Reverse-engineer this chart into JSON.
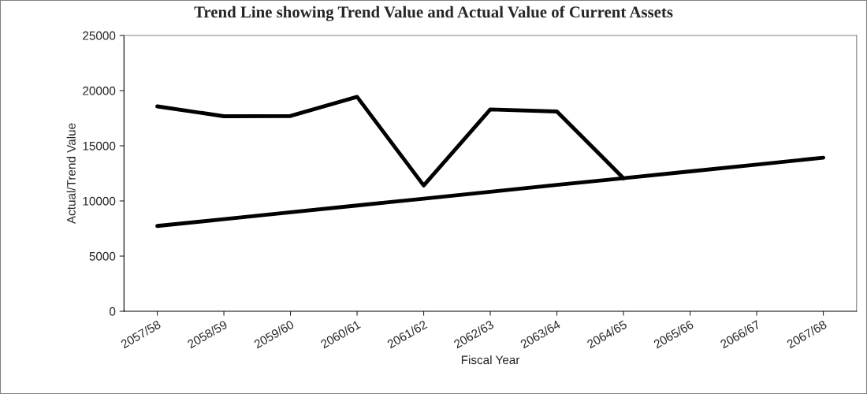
{
  "chart_data": {
    "type": "line",
    "title": "Trend Line showing Trend Value and Actual Value of Current Assets",
    "xlabel": "Fiscal Year",
    "ylabel": "Actual/Trend Value",
    "categories": [
      "2057/58",
      "2058/59",
      "2059/60",
      "2060/61",
      "2061/62",
      "2062/63",
      "2063/64",
      "2064/65",
      "2065/66",
      "2066/67",
      "2067/68"
    ],
    "series": [
      {
        "color": "#000000",
        "values": [
          18570,
          17680,
          17700,
          19440,
          11400,
          18290,
          18110,
          12060,
          null,
          null,
          null
        ]
      },
      {
        "color": "#000000",
        "values": [
          7730,
          8350,
          8970,
          9590,
          10210,
          10830,
          11450,
          12060,
          12680,
          13300,
          13920
        ]
      }
    ],
    "ylim": [
      0,
      25000
    ],
    "yticks": [
      0,
      5000,
      10000,
      15000,
      20000,
      25000
    ],
    "grid": false,
    "marker": "none",
    "line_style": "solid"
  }
}
